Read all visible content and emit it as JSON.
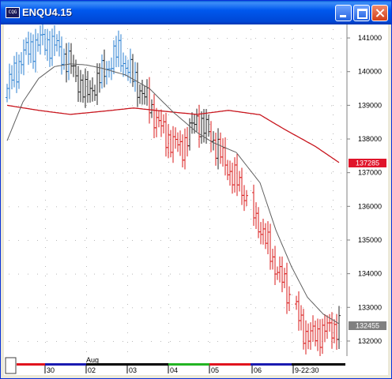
{
  "window": {
    "title": "ENQU4.15",
    "icon": "cqg-app-icon"
  },
  "chart_data": {
    "type": "ohlc-bar",
    "price_axis": {
      "ticks": [
        "141000",
        "140000",
        "139000",
        "138000",
        "137000",
        "136000",
        "135000",
        "134000",
        "133000",
        "132000"
      ],
      "range": [
        131600,
        141400
      ]
    },
    "last_price_label": {
      "text": "132455",
      "value": 132455,
      "color": "#808080"
    },
    "ma_value_label": {
      "text": "137285",
      "value": 137285,
      "color": "#e0142a"
    },
    "time_axis": {
      "month_label": "Aug",
      "labels": [
        "30",
        "02",
        "03",
        "04",
        "05",
        "06",
        "9-22:30"
      ]
    },
    "colors": {
      "up_trend": "#2a7fd0",
      "down_trend": "#d81818",
      "neutral": "#202020",
      "slow_ma": "#c8161e",
      "fast_ma": "#606060"
    },
    "series": [
      {
        "name": "price",
        "style": "bars",
        "key_values": [
          [
            0,
            139500
          ],
          [
            20,
            140500
          ],
          [
            40,
            140900
          ],
          [
            60,
            140800
          ],
          [
            80,
            140200
          ],
          [
            100,
            139300
          ],
          [
            120,
            139900
          ],
          [
            140,
            140600
          ],
          [
            160,
            139800
          ],
          [
            180,
            139000
          ],
          [
            200,
            138100
          ],
          [
            220,
            137700
          ],
          [
            240,
            138600
          ],
          [
            260,
            138000
          ],
          [
            280,
            137100
          ],
          [
            300,
            136400
          ],
          [
            320,
            135400
          ],
          [
            340,
            134200
          ],
          [
            360,
            133200
          ],
          [
            380,
            132100
          ],
          [
            400,
            132300
          ],
          [
            420,
            132455
          ]
        ]
      },
      {
        "name": "slow moving average",
        "style": "line",
        "key_values": [
          [
            0,
            139000
          ],
          [
            40,
            138850
          ],
          [
            80,
            138730
          ],
          [
            120,
            138820
          ],
          [
            160,
            138920
          ],
          [
            200,
            138820
          ],
          [
            240,
            138730
          ],
          [
            280,
            138850
          ],
          [
            320,
            138720
          ],
          [
            350,
            138300
          ],
          [
            390,
            137780
          ],
          [
            421,
            137285
          ]
        ]
      },
      {
        "name": "fast moving average",
        "style": "line",
        "key_values": [
          [
            0,
            137950
          ],
          [
            20,
            139100
          ],
          [
            40,
            139800
          ],
          [
            60,
            140150
          ],
          [
            80,
            140230
          ],
          [
            100,
            140200
          ],
          [
            120,
            140100
          ],
          [
            150,
            139900
          ],
          [
            180,
            139500
          ],
          [
            210,
            138800
          ],
          [
            240,
            138200
          ],
          [
            260,
            137900
          ],
          [
            290,
            137600
          ],
          [
            320,
            136700
          ],
          [
            340,
            135300
          ],
          [
            360,
            134200
          ],
          [
            380,
            133300
          ],
          [
            400,
            132800
          ],
          [
            421,
            132500
          ]
        ]
      }
    ]
  }
}
